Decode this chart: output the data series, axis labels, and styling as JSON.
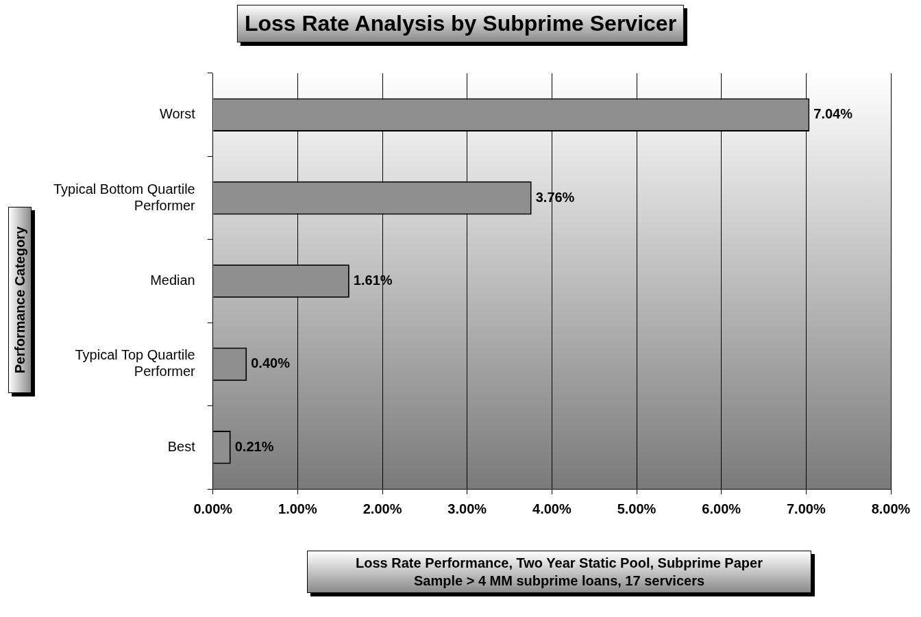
{
  "chart_data": {
    "type": "bar",
    "orientation": "horizontal",
    "title": "Loss Rate Analysis by Subprime Servicer",
    "xlabel": "Loss Rate Performance, Two Year Static Pool, Subprime Paper\nSample > 4 MM subprime loans, 17 servicers",
    "ylabel": "Performance Category",
    "categories": [
      "Worst",
      "Typical Bottom Quartile Performer",
      "Median",
      "Typical Top Quartile Performer",
      "Best"
    ],
    "values": [
      7.04,
      3.76,
      1.61,
      0.4,
      0.21
    ],
    "value_labels": [
      "7.04%",
      "3.76%",
      "1.61%",
      "0.40%",
      "0.21%"
    ],
    "color": "#8f8f8f",
    "xlim": [
      0,
      8
    ],
    "xticks": [
      {
        "value": 0,
        "label": "0.00%"
      },
      {
        "value": 1,
        "label": "1.00%"
      },
      {
        "value": 2,
        "label": "2.00%"
      },
      {
        "value": 3,
        "label": "3.00%"
      },
      {
        "value": 4,
        "label": "4.00%"
      },
      {
        "value": 5,
        "label": "5.00%"
      },
      {
        "value": 6,
        "label": "6.00%"
      },
      {
        "value": 7,
        "label": "7.00%"
      },
      {
        "value": 8,
        "label": "8.00%"
      }
    ],
    "grid": "x",
    "legend": false
  }
}
